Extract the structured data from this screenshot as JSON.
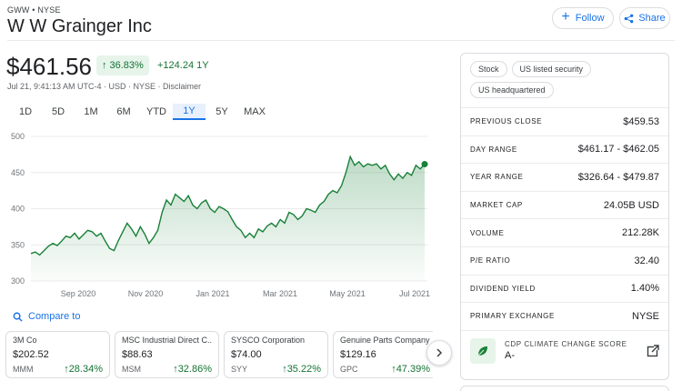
{
  "header": {
    "ticker": "GWW • NYSE",
    "company": "W W Grainger Inc",
    "follow_label": "Follow",
    "share_label": "Share"
  },
  "quote": {
    "price": "$461.56",
    "change_pct": "36.83%",
    "change_abs": "+124.24 1Y",
    "meta": "Jul 21, 9:41:13 AM UTC-4 · USD · NYSE · Disclaimer"
  },
  "range_tabs": [
    "1D",
    "5D",
    "1M",
    "6M",
    "YTD",
    "1Y",
    "5Y",
    "MAX"
  ],
  "active_range": "1Y",
  "chart_data": {
    "type": "area",
    "ylim": [
      300,
      500
    ],
    "yticks": [
      "500",
      "450",
      "400",
      "350",
      "300"
    ],
    "xtick_labels": [
      "Sep 2020",
      "Nov 2020",
      "Jan 2021",
      "Mar 2021",
      "May 2021",
      "Jul 2021"
    ],
    "series": [
      {
        "values": [
          338,
          340,
          336,
          342,
          348,
          352,
          349,
          355,
          362,
          360,
          366,
          358,
          364,
          370,
          368,
          362,
          366,
          355,
          345,
          342,
          356,
          368,
          380,
          372,
          362,
          375,
          365,
          352,
          360,
          370,
          395,
          412,
          405,
          420,
          415,
          410,
          418,
          405,
          400,
          408,
          412,
          400,
          395,
          403,
          400,
          396,
          385,
          375,
          370,
          360,
          366,
          360,
          372,
          368,
          376,
          380,
          375,
          385,
          380,
          395,
          392,
          385,
          390,
          400,
          398,
          395,
          405,
          410,
          420,
          425,
          422,
          432,
          450,
          472,
          460,
          465,
          458,
          462,
          460,
          462,
          455,
          460,
          448,
          440,
          448,
          442,
          450,
          446,
          460,
          455,
          462
        ]
      }
    ],
    "last_point": 461.56,
    "color": "#188038"
  },
  "compare": {
    "label": "Compare to"
  },
  "cards": [
    {
      "name": "3M Co",
      "price": "$202.52",
      "symbol": "MMM",
      "change": "28.34%"
    },
    {
      "name": "MSC Industrial Direct C...",
      "price": "$88.63",
      "symbol": "MSM",
      "change": "32.86%"
    },
    {
      "name": "SYSCO Corporation",
      "price": "$74.00",
      "symbol": "SYY",
      "change": "35.22%"
    },
    {
      "name": "Genuine Parts Company",
      "price": "$129.16",
      "symbol": "GPC",
      "change": "47.39%"
    }
  ],
  "chips": [
    "Stock",
    "US listed security",
    "US headquartered"
  ],
  "stats": [
    {
      "label": "PREVIOUS CLOSE",
      "value": "$459.53"
    },
    {
      "label": "DAY RANGE",
      "value": "$461.17 - $462.05"
    },
    {
      "label": "YEAR RANGE",
      "value": "$326.64 - $479.87"
    },
    {
      "label": "MARKET CAP",
      "value": "24.05B USD"
    },
    {
      "label": "VOLUME",
      "value": "212.28K"
    },
    {
      "label": "P/E RATIO",
      "value": "32.40"
    },
    {
      "label": "DIVIDEND YIELD",
      "value": "1.40%"
    },
    {
      "label": "PRIMARY EXCHANGE",
      "value": "NYSE"
    }
  ],
  "climate": {
    "label": "CDP CLIMATE CHANGE SCORE",
    "value": "A-"
  },
  "colors": {
    "accent": "#1a73e8",
    "positive": "#137333",
    "line": "#188038"
  }
}
